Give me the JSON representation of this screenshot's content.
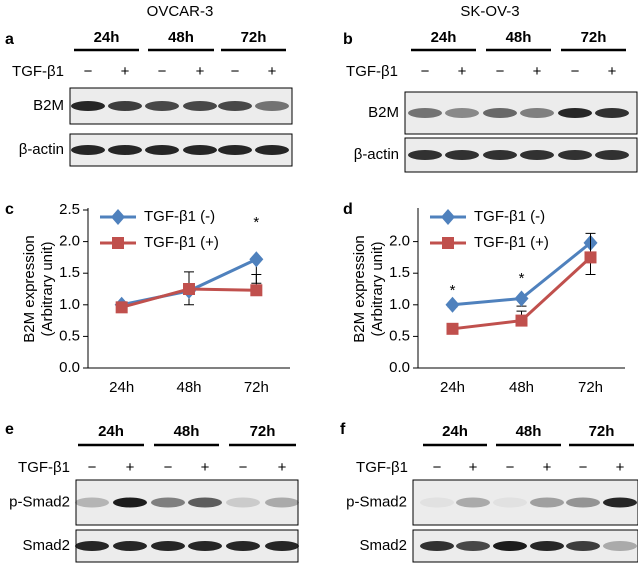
{
  "blots": [
    {
      "letter": "a",
      "title": "OVCAR-3",
      "times": [
        "24h",
        "48h",
        "72h"
      ],
      "treatment": "TGF-β1",
      "signs": [
        "−",
        "+",
        "−",
        "+",
        "−",
        "+"
      ],
      "rows": [
        "B2M",
        "β-actin"
      ]
    },
    {
      "letter": "b",
      "title": "SK-OV-3",
      "times": [
        "24h",
        "48h",
        "72h"
      ],
      "treatment": "TGF-β1",
      "signs": [
        "−",
        "+",
        "−",
        "+",
        "−",
        "+"
      ],
      "rows": [
        "B2M",
        "β-actin"
      ]
    },
    {
      "letter": "e",
      "times": [
        "24h",
        "48h",
        "72h"
      ],
      "treatment": "TGF-β1",
      "signs": [
        "−",
        "+",
        "−",
        "+",
        "−",
        "+"
      ],
      "rows": [
        "p-Smad2",
        "Smad2"
      ]
    },
    {
      "letter": "f",
      "times": [
        "24h",
        "48h",
        "72h"
      ],
      "treatment": "TGF-β1",
      "signs": [
        "−",
        "+",
        "−",
        "+",
        "−",
        "+"
      ],
      "rows": [
        "p-Smad2",
        "Smad2"
      ]
    }
  ],
  "chart_data": [
    {
      "type": "line",
      "letter": "c",
      "y_label": [
        "B2M expression",
        "(Arbitrary unit)"
      ],
      "categories": [
        "24h",
        "48h",
        "72h"
      ],
      "series": [
        {
          "name": "TGF-β1 (-)",
          "color": "#4f81bd",
          "values": [
            1.0,
            1.22,
            1.72
          ],
          "errors": [
            0.02,
            0.22,
            0.38
          ]
        },
        {
          "name": "TGF-β1 (+)",
          "color": "#c0504d",
          "values": [
            0.96,
            1.25,
            1.23
          ],
          "errors": [
            0.02,
            0.27,
            0.25
          ]
        }
      ],
      "ylim": [
        0,
        2.5
      ],
      "yticks": [
        {
          "value": 0,
          "label": "0.0"
        },
        {
          "value": 0.5,
          "label": "0.5"
        },
        {
          "value": 1,
          "label": "1.0"
        },
        {
          "value": 1.5,
          "label": "1.5"
        },
        {
          "value": 2,
          "label": "2.0"
        },
        {
          "value": 2.5,
          "label": "2.5"
        }
      ],
      "annotations": [
        {
          "text": "*",
          "x": "72h"
        }
      ]
    },
    {
      "type": "line",
      "letter": "d",
      "y_label": [
        "B2M expression",
        "(Arbitrary unit)"
      ],
      "categories": [
        "24h",
        "48h",
        "72h"
      ],
      "series": [
        {
          "name": "TGF-β1 (-)",
          "color": "#4f81bd",
          "values": [
            1.0,
            1.1,
            1.98
          ],
          "errors": [
            0.03,
            0.12,
            0.5
          ]
        },
        {
          "name": "TGF-β1 (+)",
          "color": "#c0504d",
          "values": [
            0.62,
            0.75,
            1.75
          ],
          "errors": [
            0.03,
            0.15,
            0.38
          ]
        }
      ],
      "ylim": [
        0,
        2.5
      ],
      "yticks": [
        {
          "value": 0,
          "label": "0.0"
        },
        {
          "value": 0.5,
          "label": "0.5"
        },
        {
          "value": 1,
          "label": "1.0"
        },
        {
          "value": 1.5,
          "label": "1.5"
        },
        {
          "value": 2,
          "label": "2.0"
        }
      ],
      "annotations": [
        {
          "text": "*",
          "x": "24h"
        },
        {
          "text": "*",
          "x": "48h"
        }
      ]
    }
  ]
}
